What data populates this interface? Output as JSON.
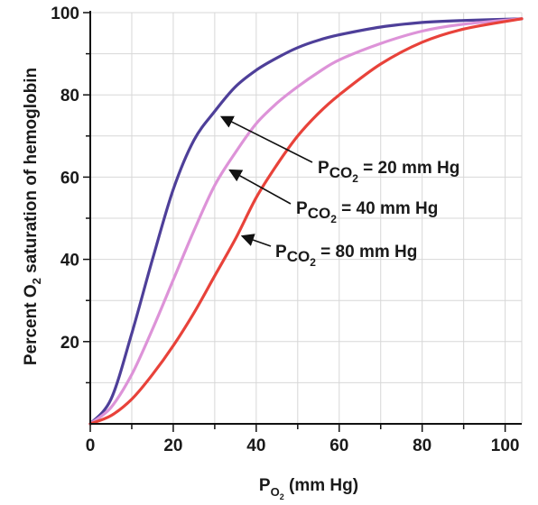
{
  "chart_data": {
    "type": "line",
    "x_axis": {
      "label_main": "P",
      "label_sub": "O",
      "label_sub2": "2",
      "label_units": " (mm Hg)",
      "range": [
        0,
        104
      ],
      "ticks": [
        0,
        20,
        40,
        60,
        80,
        100
      ],
      "tick_labels": [
        "0",
        "20",
        "40",
        "60",
        "80",
        "100"
      ],
      "minor_step": 10
    },
    "y_axis": {
      "label_pre": "Percent O",
      "label_sub": "2",
      "label_post": " saturation of hemoglobin",
      "range": [
        0,
        100
      ],
      "ticks": [
        20,
        40,
        60,
        80,
        100
      ],
      "tick_labels": [
        "20",
        "40",
        "60",
        "80",
        "100"
      ],
      "minor_step": 10
    },
    "grid": true,
    "series": [
      {
        "name": "PCO2 = 20 mm Hg",
        "color": "#4e3f99",
        "points": [
          [
            0,
            0
          ],
          [
            5,
            6
          ],
          [
            10,
            22
          ],
          [
            15,
            40
          ],
          [
            20,
            57
          ],
          [
            25,
            69
          ],
          [
            30,
            76
          ],
          [
            35,
            82
          ],
          [
            40,
            86
          ],
          [
            45,
            89
          ],
          [
            50,
            91.5
          ],
          [
            55,
            93.3
          ],
          [
            60,
            94.6
          ],
          [
            70,
            96.5
          ],
          [
            80,
            97.6
          ],
          [
            90,
            98.1
          ],
          [
            104,
            98.5
          ]
        ]
      },
      {
        "name": "PCO2 = 40 mm Hg",
        "color": "#dd93d8",
        "points": [
          [
            0,
            0
          ],
          [
            5,
            4
          ],
          [
            10,
            12
          ],
          [
            15,
            23
          ],
          [
            20,
            35
          ],
          [
            25,
            47
          ],
          [
            30,
            58
          ],
          [
            35,
            66
          ],
          [
            40,
            73
          ],
          [
            45,
            78
          ],
          [
            50,
            82
          ],
          [
            55,
            85.5
          ],
          [
            60,
            88.5
          ],
          [
            70,
            92.5
          ],
          [
            80,
            95.5
          ],
          [
            90,
            97.2
          ],
          [
            104,
            98.5
          ]
        ]
      },
      {
        "name": "PCO2 = 80 mm Hg",
        "color": "#e8423a",
        "points": [
          [
            0,
            0
          ],
          [
            5,
            2
          ],
          [
            10,
            6
          ],
          [
            15,
            12
          ],
          [
            20,
            19
          ],
          [
            25,
            27
          ],
          [
            30,
            36
          ],
          [
            35,
            45
          ],
          [
            40,
            55
          ],
          [
            45,
            63
          ],
          [
            50,
            70
          ],
          [
            55,
            75.5
          ],
          [
            60,
            80
          ],
          [
            70,
            87.5
          ],
          [
            80,
            92.8
          ],
          [
            90,
            96
          ],
          [
            104,
            98.5
          ]
        ]
      }
    ],
    "annotations": [
      {
        "main": "P",
        "sub": "CO",
        "sub2": "2",
        "rest": " = 20 mm Hg",
        "arrow_to": [
          31,
          75
        ]
      },
      {
        "main": "P",
        "sub": "CO",
        "sub2": "2",
        "rest": " = 40 mm Hg",
        "arrow_to": [
          33,
          62
        ]
      },
      {
        "main": "P",
        "sub": "CO",
        "sub2": "2",
        "rest": " = 80 mm Hg",
        "arrow_to": [
          36,
          46
        ]
      }
    ]
  }
}
